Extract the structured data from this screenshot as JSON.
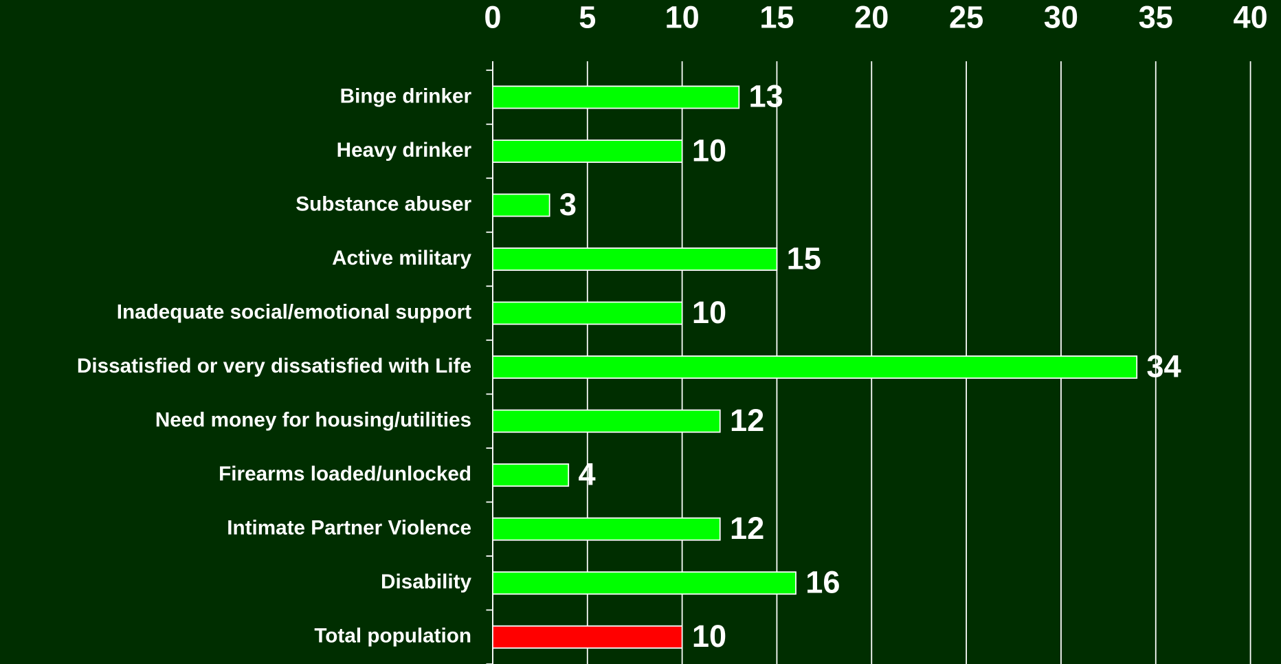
{
  "chart_data": {
    "type": "bar",
    "orientation": "horizontal",
    "categories": [
      "Binge drinker",
      "Heavy drinker",
      "Substance abuser",
      "Active military",
      "Inadequate social/emotional support",
      "Dissatisfied or very dissatisfied with Life",
      "Need money for housing/utilities",
      "Firearms loaded/unlocked",
      "Intimate Partner Violence",
      "Disability",
      "Total population"
    ],
    "values": [
      13,
      10,
      3,
      15,
      10,
      34,
      12,
      4,
      12,
      16,
      10
    ],
    "colors": [
      "#00ff00",
      "#00ff00",
      "#00ff00",
      "#00ff00",
      "#00ff00",
      "#00ff00",
      "#00ff00",
      "#00ff00",
      "#00ff00",
      "#00ff00",
      "#ff0000"
    ],
    "xlim": [
      0,
      40
    ],
    "xticks": [
      0,
      5,
      10,
      15,
      20,
      25,
      30,
      35,
      40
    ],
    "grid": true
  }
}
